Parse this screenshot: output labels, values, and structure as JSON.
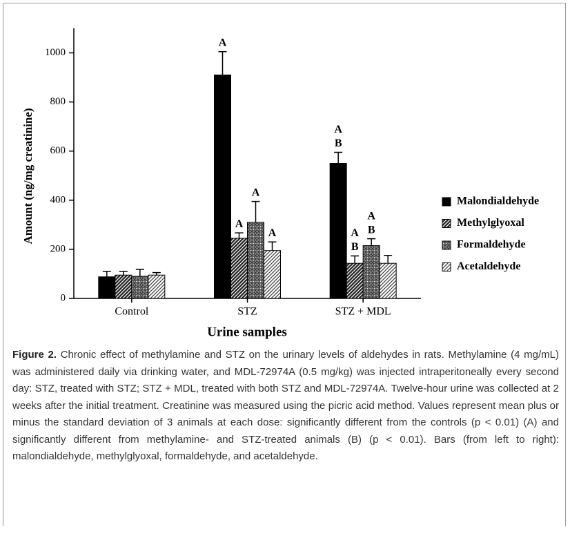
{
  "chart_data": {
    "type": "bar",
    "ylabel": "Amount (ng/mg creatinine)",
    "xlabel": "Urine samples",
    "categories": [
      "Control",
      "STZ",
      "STZ + MDL"
    ],
    "ylim": [
      0,
      1100
    ],
    "yticks": [
      0,
      200,
      400,
      600,
      800,
      1000
    ],
    "legend": "right",
    "series": [
      {
        "name": "Malondialdehyde",
        "color": "#000000",
        "pattern": "solid",
        "values": [
          88,
          910,
          550
        ],
        "errors": [
          22,
          95,
          45
        ],
        "annotations": [
          null,
          [
            "A"
          ],
          [
            "A",
            "B"
          ]
        ]
      },
      {
        "name": "Methylglyoxal",
        "color": "#222222",
        "pattern": "hatch-dense",
        "values": [
          95,
          245,
          143
        ],
        "errors": [
          15,
          22,
          30
        ],
        "annotations": [
          null,
          [
            "A"
          ],
          [
            "A",
            "B"
          ]
        ]
      },
      {
        "name": "Formaldehyde",
        "color": "#333333",
        "pattern": "crosshatch",
        "values": [
          90,
          310,
          215
        ],
        "errors": [
          28,
          85,
          28
        ],
        "annotations": [
          null,
          [
            "A"
          ],
          [
            "A",
            "B"
          ]
        ]
      },
      {
        "name": "Acetaldehyde",
        "color": "#444444",
        "pattern": "hatch-light",
        "values": [
          95,
          195,
          143
        ],
        "errors": [
          10,
          35,
          32
        ],
        "annotations": [
          null,
          [
            "A"
          ],
          null
        ]
      }
    ]
  },
  "caption": {
    "label": "Figure 2.",
    "text": "Chronic effect of methylamine and STZ on the urinary levels of aldehydes in rats. Methylamine (4 mg/mL) was administered daily via drinking water, and MDL-72974A (0.5 mg/kg) was injected intraperitoneally every second day: STZ, treated with STZ; STZ + MDL, treated with both STZ and MDL-72974A. Twelve-hour urine was collected at 2 weeks after the initial treatment. Creatinine was measured using the picric acid method. Values represent mean plus or minus the standard deviation of 3 animals at each dose: significantly different from the controls (p < 0.01) (A) and significantly different from methylamine- and STZ-treated animals (B) (p < 0.01). Bars (from left to right): malondialdehyde, methylglyoxal, formaldehyde, and acetaldehyde."
  }
}
